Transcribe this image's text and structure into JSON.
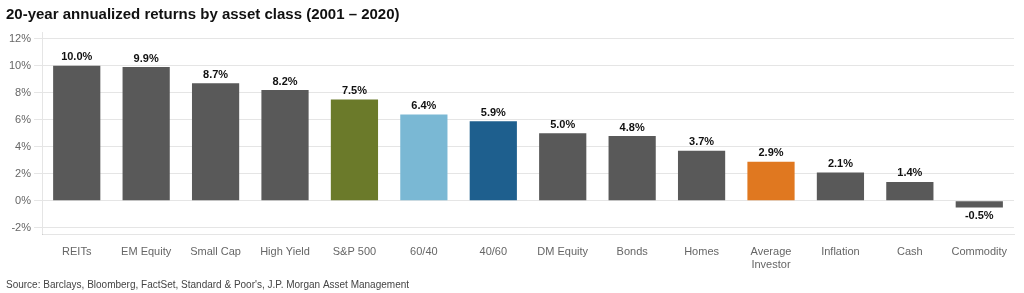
{
  "chart_data": {
    "type": "bar",
    "title": "20-year annualized returns by asset class (2001 – 2020)",
    "source": "Source: Barclays, Bloomberg, FactSet, Standard & Poor's, J.P. Morgan Asset Management",
    "categories": [
      "REITs",
      "EM Equity",
      "Small Cap",
      "High Yield",
      "S&P 500",
      "60/40",
      "40/60",
      "DM Equity",
      "Bonds",
      "Homes",
      "Average\nInvestor",
      "Inflation",
      "Cash",
      "Commodity"
    ],
    "values": [
      10.0,
      9.9,
      8.7,
      8.2,
      7.5,
      6.4,
      5.9,
      5.0,
      4.8,
      3.7,
      2.9,
      2.1,
      1.4,
      -0.5
    ],
    "value_labels": [
      "10.0%",
      "9.9%",
      "8.7%",
      "8.2%",
      "7.5%",
      "6.4%",
      "5.9%",
      "5.0%",
      "4.8%",
      "3.7%",
      "2.9%",
      "2.1%",
      "1.4%",
      "-0.5%"
    ],
    "colors": [
      "#595959",
      "#595959",
      "#595959",
      "#595959",
      "#6b7a2a",
      "#7ab8d4",
      "#1e5f8e",
      "#595959",
      "#595959",
      "#595959",
      "#e07820",
      "#595959",
      "#595959",
      "#595959"
    ],
    "data_labels": true,
    "ylim": [
      -2.5,
      12.5
    ],
    "yticks": [
      {
        "value": -2,
        "label": "-2%"
      },
      {
        "value": 0,
        "label": "0%"
      },
      {
        "value": 2,
        "label": "2%"
      },
      {
        "value": 4,
        "label": "4%"
      },
      {
        "value": 6,
        "label": "6%"
      },
      {
        "value": 8,
        "label": "8%"
      },
      {
        "value": 10,
        "label": "10%"
      },
      {
        "value": 12,
        "label": "12%"
      }
    ],
    "grid": true
  }
}
